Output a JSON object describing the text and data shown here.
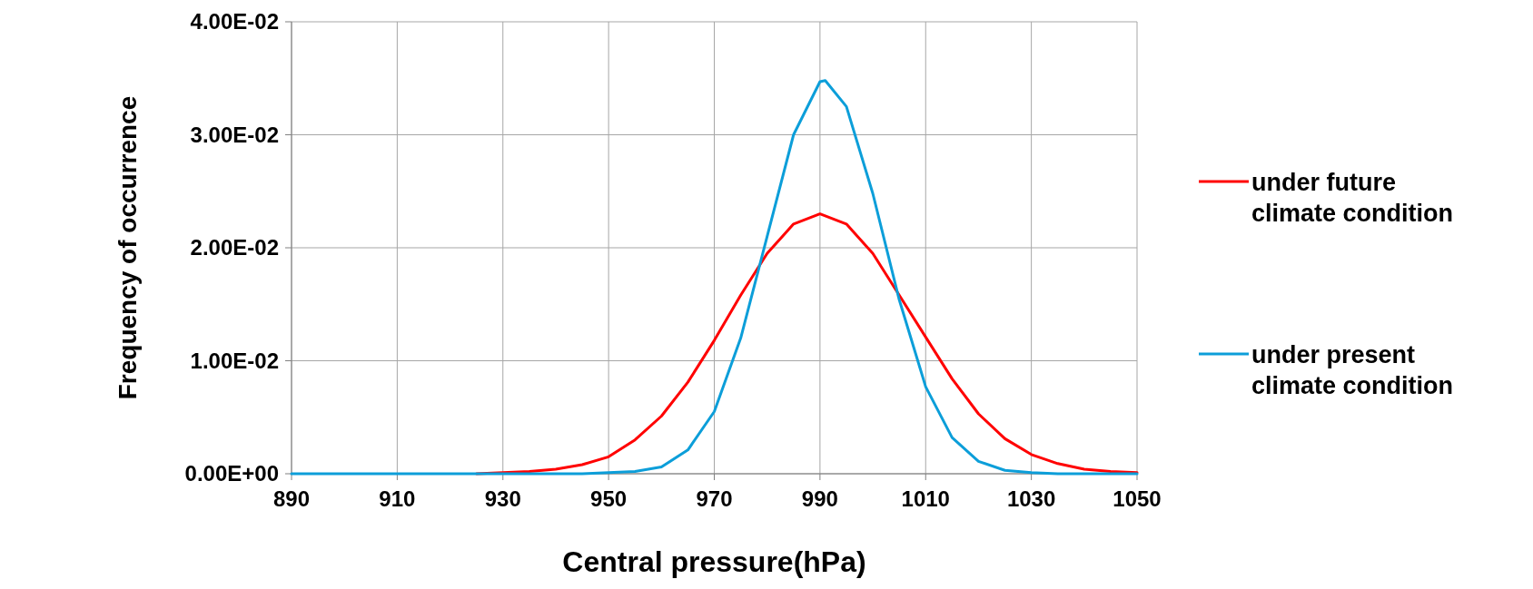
{
  "chart_data": {
    "type": "line",
    "xlabel": "Central pressure(hPa)",
    "ylabel": "Frequency of occurrence",
    "xlim": [
      890,
      1050
    ],
    "xticks": [
      890,
      910,
      930,
      950,
      970,
      990,
      1010,
      1030,
      1050
    ],
    "ylim": [
      0,
      0.04
    ],
    "yticks": [
      {
        "value": 0,
        "label": "0.00E+00"
      },
      {
        "value": 0.01,
        "label": "1.00E-02"
      },
      {
        "value": 0.02,
        "label": "2.00E-02"
      },
      {
        "value": 0.03,
        "label": "3.00E-02"
      },
      {
        "value": 0.04,
        "label": "4.00E-02"
      }
    ],
    "grid": true,
    "legend": "right",
    "marker": "none",
    "line_style": "solid",
    "series": [
      {
        "name": "under future climate condition",
        "color": "#ff0000",
        "x": [
          925,
          930,
          935,
          940,
          945,
          950,
          955,
          960,
          965,
          970,
          975,
          980,
          985,
          990,
          995,
          1000,
          1005,
          1010,
          1015,
          1020,
          1025,
          1030,
          1035,
          1040,
          1045,
          1050
        ],
        "values": [
          0,
          0.0001,
          0.0002,
          0.0004,
          0.0008,
          0.0015,
          0.003,
          0.0051,
          0.0081,
          0.0118,
          0.0158,
          0.0195,
          0.0221,
          0.023,
          0.0221,
          0.0195,
          0.0158,
          0.0121,
          0.0084,
          0.0053,
          0.0031,
          0.0017,
          0.0009,
          0.0004,
          0.0002,
          0.0001
        ]
      },
      {
        "name": "under present climate condition",
        "color": "#0c9ed9",
        "x": [
          890,
          895,
          900,
          905,
          910,
          915,
          920,
          925,
          930,
          935,
          940,
          945,
          950,
          955,
          960,
          965,
          970,
          975,
          980,
          985,
          990,
          991,
          995,
          1000,
          1005,
          1010,
          1015,
          1020,
          1025,
          1030,
          1035,
          1040,
          1045,
          1050
        ],
        "values": [
          0,
          0,
          0,
          0,
          0,
          0,
          0,
          0,
          0,
          0,
          0,
          0,
          0.0001,
          0.0002,
          0.0006,
          0.0021,
          0.0055,
          0.012,
          0.021,
          0.03,
          0.0347,
          0.0348,
          0.0325,
          0.0248,
          0.0154,
          0.0077,
          0.0032,
          0.0011,
          0.0003,
          0.0001,
          0,
          0,
          0,
          0
        ]
      }
    ]
  }
}
